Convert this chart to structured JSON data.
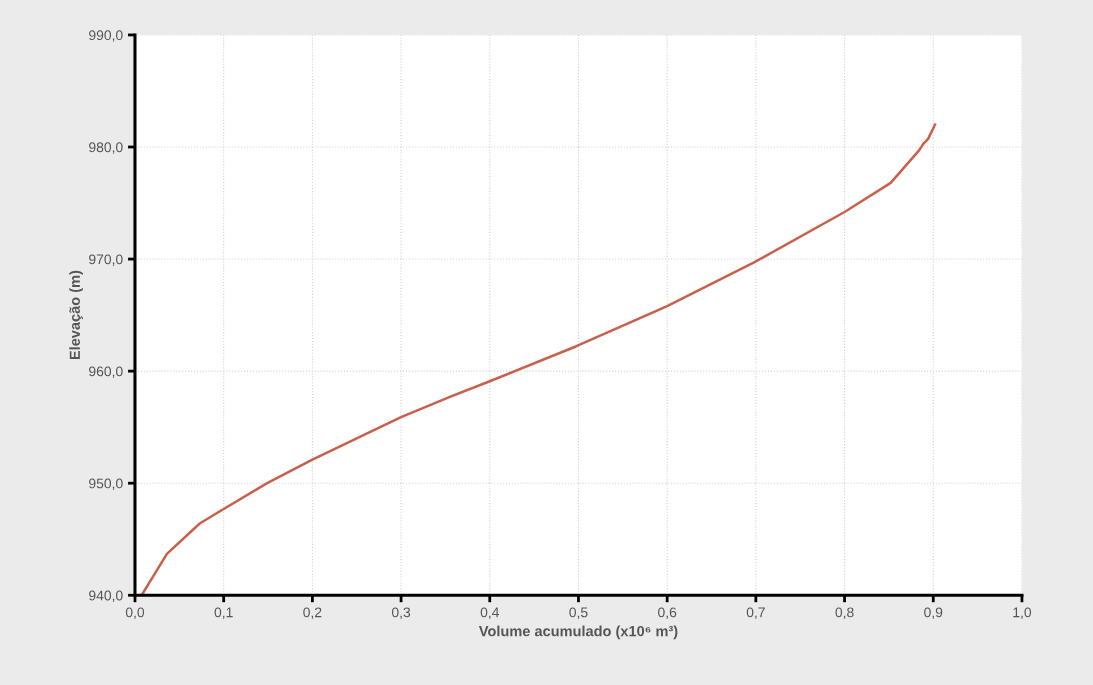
{
  "chart_data": {
    "type": "line",
    "xlabel": "Volume acumulado (x10⁶ m³)",
    "ylabel": "Elevação (m)",
    "series": [
      {
        "color": "#c8604c",
        "x": [
          0.0075,
          0.036,
          0.073,
          0.1,
          0.149,
          0.2,
          0.3,
          0.355,
          0.4,
          0.497,
          0.6,
          0.698,
          0.8,
          0.852,
          0.884,
          0.889,
          0.894,
          0.902
        ],
        "values": [
          940.0,
          943.7,
          946.4,
          947.7,
          950.0,
          952.1,
          955.9,
          957.7,
          959.1,
          962.2,
          965.8,
          969.7,
          974.2,
          976.8,
          979.7,
          980.3,
          980.7,
          982.0
        ]
      }
    ],
    "xlim": [
      0,
      1.0
    ],
    "xticks": [
      {
        "value": 0,
        "label": "0,0"
      },
      {
        "value": 0.1,
        "label": "0,1"
      },
      {
        "value": 0.2,
        "label": "0,2"
      },
      {
        "value": 0.3,
        "label": "0,3"
      },
      {
        "value": 0.4,
        "label": "0,4"
      },
      {
        "value": 0.5,
        "label": "0,5"
      },
      {
        "value": 0.6,
        "label": "0,6"
      },
      {
        "value": 0.7,
        "label": "0,7"
      },
      {
        "value": 0.8,
        "label": "0,8"
      },
      {
        "value": 0.9,
        "label": "0,9"
      },
      {
        "value": 1.0,
        "label": "1,0"
      }
    ],
    "ylim": [
      940,
      990
    ],
    "yticks": [
      {
        "value": 940,
        "label": "940,0"
      },
      {
        "value": 950,
        "label": "950,0"
      },
      {
        "value": 960,
        "label": "960,0"
      },
      {
        "value": 970,
        "label": "970,0"
      },
      {
        "value": 980,
        "label": "980,0"
      },
      {
        "value": 990,
        "label": "990,0"
      }
    ],
    "grid": true,
    "line_style": "solid",
    "marker": "none"
  }
}
